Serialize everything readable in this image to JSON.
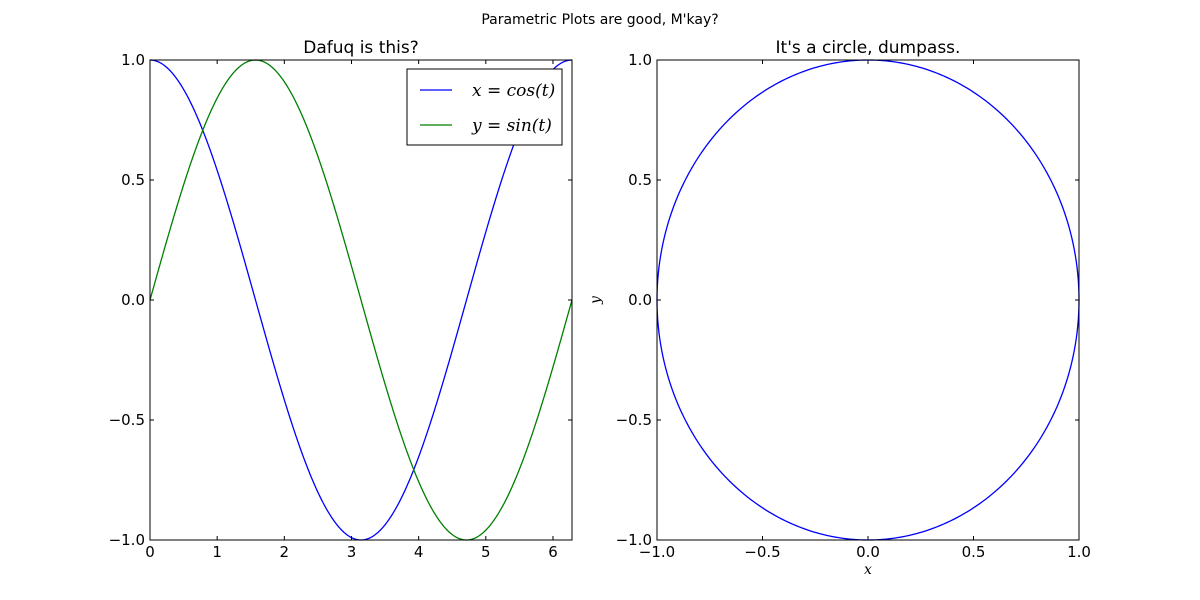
{
  "suptitle": "Parametric Plots are good, M'kay?",
  "colors": {
    "blue": "#0000ff",
    "green": "#008000",
    "axes": "#000000",
    "background": "#ffffff"
  },
  "chart_data": [
    {
      "type": "line",
      "title": "Dafuq is this?",
      "xlabel": "",
      "ylabel": "",
      "xlim": [
        0,
        6.283185307
      ],
      "ylim": [
        -1,
        1
      ],
      "x_ticks": [
        0,
        1,
        2,
        3,
        4,
        5,
        6
      ],
      "x_tick_labels": [
        "0",
        "1",
        "2",
        "3",
        "4",
        "5",
        "6"
      ],
      "y_ticks": [
        -1,
        -0.5,
        0,
        0.5,
        1
      ],
      "y_tick_labels": [
        "−1.0",
        "−0.5",
        "0.0",
        "0.5",
        "1.0"
      ],
      "grid": false,
      "legend": {
        "placement": "top-right",
        "entries": [
          "x = cos(t)",
          "y = sin(t)"
        ]
      },
      "x": [
        0,
        0.5,
        1.0,
        1.5,
        2.0,
        2.5,
        3.0,
        3.5,
        4.0,
        4.5,
        5.0,
        5.5,
        6.0,
        6.283
      ],
      "series": [
        {
          "name": "x = cos(t)",
          "color": "#0000ff",
          "values": [
            1.0,
            0.878,
            0.54,
            0.071,
            -0.416,
            -0.801,
            -0.99,
            -0.936,
            -0.654,
            -0.211,
            0.284,
            0.709,
            0.96,
            1.0
          ]
        },
        {
          "name": "y = sin(t)",
          "color": "#008000",
          "values": [
            0.0,
            0.479,
            0.841,
            0.997,
            0.909,
            0.598,
            0.141,
            -0.351,
            -0.757,
            -0.978,
            -0.959,
            -0.706,
            -0.279,
            0.0
          ]
        }
      ]
    },
    {
      "type": "line",
      "title": "It's a circle, dumpass.",
      "xlabel": "x",
      "ylabel": "y",
      "xlim": [
        -1,
        1
      ],
      "ylim": [
        -1,
        1
      ],
      "x_ticks": [
        -1,
        -0.5,
        0,
        0.5,
        1
      ],
      "x_tick_labels": [
        "−1.0",
        "−0.5",
        "0.0",
        "0.5",
        "1.0"
      ],
      "y_ticks": [
        -1,
        -0.5,
        0,
        0.5,
        1
      ],
      "y_tick_labels": [
        "−1.0",
        "−0.5",
        "0.0",
        "0.5",
        "1.0"
      ],
      "grid": false,
      "series": [
        {
          "color": "#0000ff",
          "x": [
            1.0,
            0.866,
            0.5,
            0.0,
            -0.5,
            -0.866,
            -1.0,
            -0.866,
            -0.5,
            0.0,
            0.5,
            0.866,
            1.0
          ],
          "y": [
            0.0,
            0.5,
            0.866,
            1.0,
            0.866,
            0.5,
            0.0,
            -0.5,
            -0.866,
            -1.0,
            -0.866,
            -0.5,
            0.0
          ]
        }
      ]
    }
  ]
}
